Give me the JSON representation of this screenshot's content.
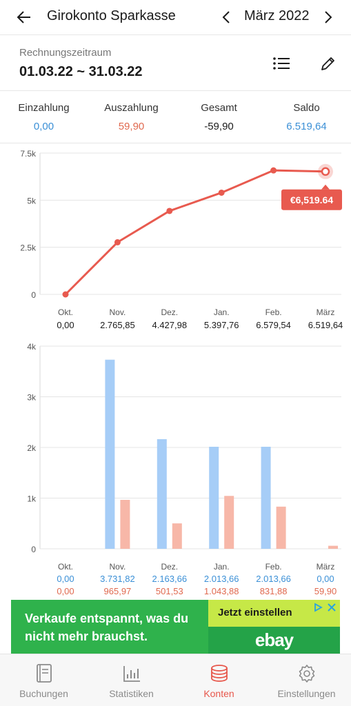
{
  "header": {
    "title": "Girokonto Sparkasse",
    "month": "März 2022"
  },
  "period": {
    "label": "Rechnungszeitraum",
    "value": "01.03.22 ~ 31.03.22"
  },
  "summary": [
    {
      "label": "Einzahlung",
      "value": "0,00",
      "color": "#3a8fd6"
    },
    {
      "label": "Auszahlung",
      "value": "59,90",
      "color": "#e0694f"
    },
    {
      "label": "Gesamt",
      "value": "-59,90",
      "color": "#1a1a1a"
    },
    {
      "label": "Saldo",
      "value": "6.519,64",
      "color": "#3a8fd6"
    }
  ],
  "chart_data": [
    {
      "type": "line",
      "categories": [
        "Okt.",
        "Nov.",
        "Dez.",
        "Jan.",
        "Feb.",
        "März"
      ],
      "values": [
        0,
        2765.85,
        4427.98,
        5397.76,
        6579.54,
        6519.64
      ],
      "value_labels": [
        "0,00",
        "2.765,85",
        "4.427,98",
        "5.397,76",
        "6.579,54",
        "6.519,64"
      ],
      "ylim": [
        0,
        7500
      ],
      "yticks": [
        "0",
        "2.5k",
        "5k",
        "7.5k"
      ],
      "ytick_values": [
        0,
        2500,
        5000,
        7500
      ],
      "tooltip": "€6,519.64",
      "color": "#e85a4f",
      "grid": true
    },
    {
      "type": "bar",
      "categories": [
        "Okt.",
        "Nov.",
        "Dez.",
        "Jan.",
        "Feb.",
        "März"
      ],
      "ylim": [
        0,
        4000
      ],
      "yticks": [
        "0",
        "1k",
        "2k",
        "3k",
        "4k"
      ],
      "ytick_values": [
        0,
        1000,
        2000,
        3000,
        4000
      ],
      "series": [
        {
          "values": [
            0,
            3731.82,
            2163.66,
            2013.66,
            2013.66,
            0
          ],
          "labels": [
            "0,00",
            "3.731,82",
            "2.163,66",
            "2.013,66",
            "2.013,66",
            "0,00"
          ],
          "color": "#a6cdf7",
          "label_color": "#3a8fd6"
        },
        {
          "values": [
            0,
            965.97,
            501.53,
            1043.88,
            831.88,
            59.9
          ],
          "labels": [
            "0,00",
            "965,97",
            "501,53",
            "1.043,88",
            "831,88",
            "59,90"
          ],
          "color": "#f7b7a8",
          "label_color": "#e0694f"
        }
      ],
      "grid": true
    }
  ],
  "ad": {
    "headline": "Verkaufe entspannt, was du nicht mehr brauchst.",
    "cta": "Jetzt einstellen",
    "brand": "ebay"
  },
  "tabs": [
    {
      "label": "Buchungen",
      "icon": "book-icon"
    },
    {
      "label": "Statistiken",
      "icon": "bar-chart-icon"
    },
    {
      "label": "Konten",
      "icon": "coins-icon",
      "active": true
    },
    {
      "label": "Einstellungen",
      "icon": "gear-icon"
    }
  ],
  "accent": "#e85a4f"
}
